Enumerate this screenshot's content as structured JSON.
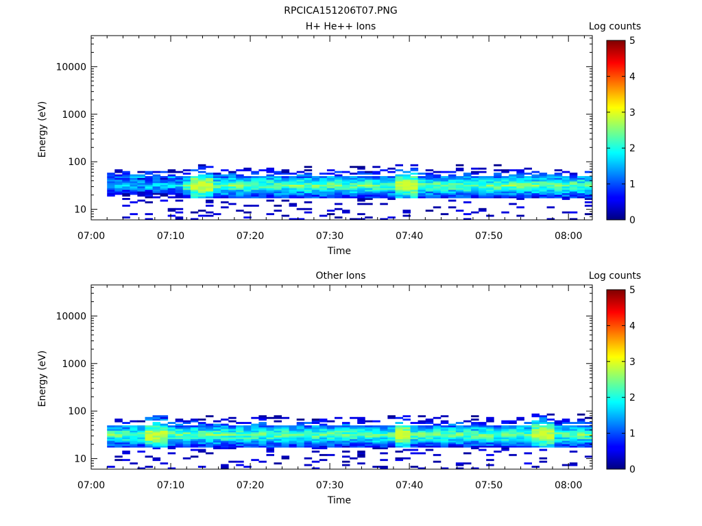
{
  "figure_title": "RPCICA151206T07.PNG",
  "chart_data": [
    {
      "type": "heatmap",
      "title": "H+ He++ Ions",
      "xlabel": "Time",
      "ylabel": "Energy (eV)",
      "xlim": [
        "07:00",
        "08:03"
      ],
      "x_ticks": [
        "07:00",
        "07:10",
        "07:20",
        "07:30",
        "07:40",
        "07:50",
        "08:00"
      ],
      "yscale": "log",
      "ylim": [
        6,
        45000
      ],
      "y_ticks": [
        "10",
        "100",
        "1000",
        "10000"
      ],
      "colorbar": {
        "label": "Log counts",
        "min": 0,
        "max": 5,
        "ticks": [
          "0",
          "1",
          "2",
          "3",
          "4",
          "5"
        ]
      },
      "data_extent": {
        "time_start": "07:02",
        "time_end": "08:03",
        "energy_min_eV": 6,
        "energy_max_eV": 95
      },
      "description_of_values": "log counts mostly 0–2; peak band ~25–45 eV with values ~2–2.8; isolated sparse pixels at 6–20 eV"
    },
    {
      "type": "heatmap",
      "title": "Other Ions",
      "xlabel": "Time",
      "ylabel": "Energy (eV)",
      "xlim": [
        "07:00",
        "08:03"
      ],
      "x_ticks": [
        "07:00",
        "07:10",
        "07:20",
        "07:30",
        "07:40",
        "07:50",
        "08:00"
      ],
      "yscale": "log",
      "ylim": [
        6,
        45000
      ],
      "y_ticks": [
        "10",
        "100",
        "1000",
        "10000"
      ],
      "colorbar": {
        "label": "Log counts",
        "min": 0,
        "max": 5,
        "ticks": [
          "0",
          "1",
          "2",
          "3",
          "4",
          "5"
        ]
      },
      "data_extent": {
        "time_start": "07:02",
        "time_end": "08:03",
        "energy_min_eV": 6,
        "energy_max_eV": 95
      },
      "description_of_values": "log counts mostly 0–2.5; strongest band ~25–45 eV; extra bright columns near 07:08 and 07:57"
    }
  ]
}
